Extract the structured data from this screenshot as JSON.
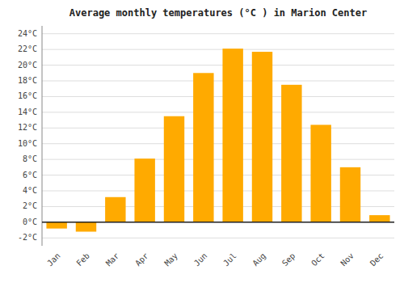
{
  "chart_data": {
    "type": "bar",
    "title": "Average monthly temperatures (°C ) in Marion Center",
    "categories": [
      "Jan",
      "Feb",
      "Mar",
      "Apr",
      "May",
      "Jun",
      "Jul",
      "Aug",
      "Sep",
      "Oct",
      "Nov",
      "Dec"
    ],
    "values": [
      -0.8,
      -1.2,
      3.2,
      8.1,
      13.5,
      19.0,
      22.1,
      21.7,
      17.5,
      12.4,
      7.0,
      0.9
    ],
    "color": "#FFAA00",
    "ylim": [
      -3,
      25
    ],
    "yticks": [
      {
        "value": -2,
        "label": "-2°C"
      },
      {
        "value": 0,
        "label": "0°C"
      },
      {
        "value": 2,
        "label": "2°C"
      },
      {
        "value": 4,
        "label": "4°C"
      },
      {
        "value": 6,
        "label": "6°C"
      },
      {
        "value": 8,
        "label": "8°C"
      },
      {
        "value": 10,
        "label": "10°C"
      },
      {
        "value": 12,
        "label": "12°C"
      },
      {
        "value": 14,
        "label": "14°C"
      },
      {
        "value": 16,
        "label": "16°C"
      },
      {
        "value": 18,
        "label": "18°C"
      },
      {
        "value": 20,
        "label": "20°C"
      },
      {
        "value": 22,
        "label": "22°C"
      },
      {
        "value": 24,
        "label": "24°C"
      }
    ],
    "grid": true
  }
}
